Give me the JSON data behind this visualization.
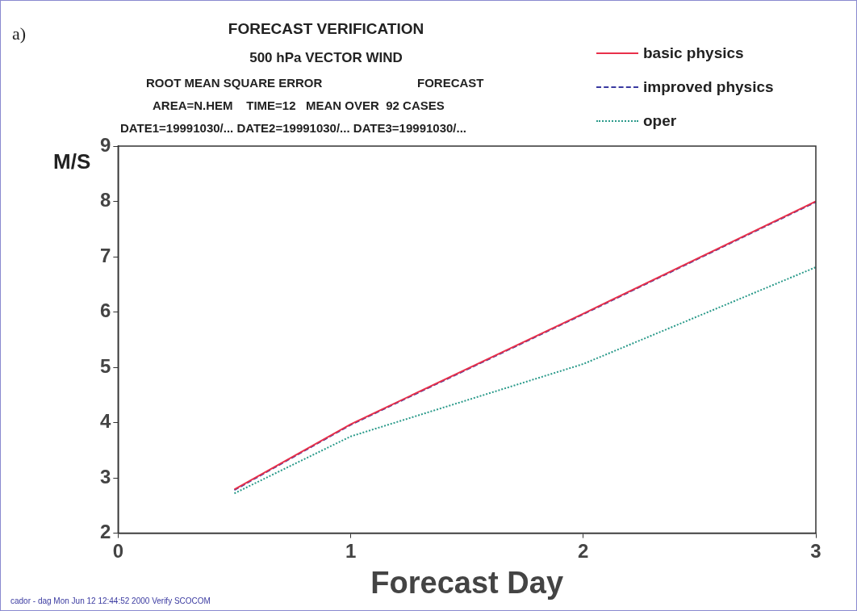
{
  "chart_data": {
    "type": "line",
    "title": "FORECAST VERIFICATION",
    "subtitle": "500 hPa VECTOR WIND",
    "annotations": [
      "a)",
      "ROOT MEAN SQUARE ERROR",
      "FORECAST",
      "AREA=N.HEM    TIME=12   MEAN OVER  92 CASES",
      "DATE1=19991030/... DATE2=19991030/... DATE3=19991030/...",
      "cador - dag Mon Jun 12 12:44:52 2000 Verify SCOCOM"
    ],
    "xlabel": "Forecast Day",
    "ylabel": "M/S",
    "x": [
      0.5,
      1,
      2,
      3
    ],
    "series": [
      {
        "name": "basic physics",
        "color": "#e8304a",
        "values": [
          2.79,
          3.97,
          5.97,
          8.0
        ],
        "line_style": "solid"
      },
      {
        "name": "improved physics",
        "color": "#3a3aa0",
        "values": [
          2.78,
          3.96,
          5.96,
          7.99
        ],
        "line_style": "dashed"
      },
      {
        "name": "oper",
        "color": "#2a9a8a",
        "values": [
          2.72,
          3.75,
          5.06,
          6.81
        ],
        "line_style": "dotted"
      }
    ],
    "xlim": [
      0,
      3
    ],
    "xticks": [
      0,
      1,
      2,
      3
    ],
    "ylim": [
      2,
      9
    ],
    "yticks": [
      2,
      3,
      4,
      5,
      6,
      7,
      8,
      9
    ],
    "grid": false,
    "legend": "top right",
    "marker": "none"
  }
}
